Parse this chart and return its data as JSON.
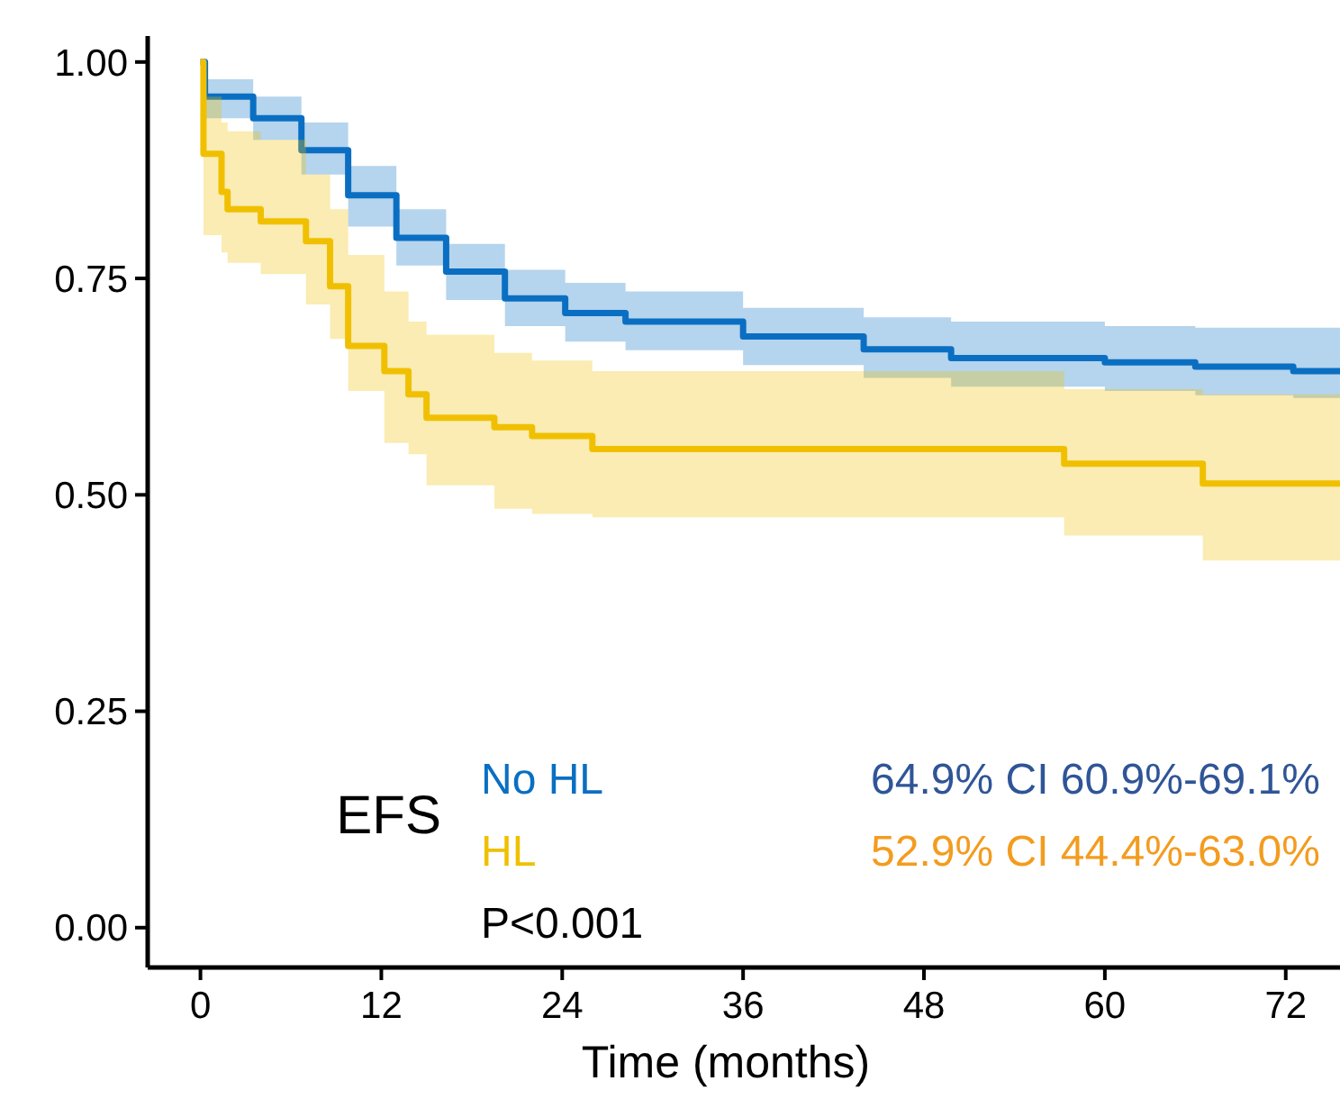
{
  "chart_data": {
    "type": "step",
    "xlabel": "Time (months)",
    "xlim": [
      -3.5,
      75.6
    ],
    "xticks": [
      0,
      12,
      24,
      36,
      48,
      60,
      72
    ],
    "ylim": [
      -0.046,
      1.03
    ],
    "yticks": [
      {
        "value": 0,
        "label": "0.00"
      },
      {
        "value": 0.25,
        "label": "0.25"
      },
      {
        "value": 0.5,
        "label": "0.50"
      },
      {
        "value": 0.75,
        "label": "0.75"
      },
      {
        "value": 1,
        "label": "1.00"
      }
    ],
    "legend": "bottom",
    "legend_title": "EFS",
    "series": [
      {
        "name": "No HL",
        "color": "#0a6fc2",
        "x": [
          0,
          0.3,
          3.5,
          6.7,
          9.8,
          13,
          16.3,
          20.2,
          24.2,
          28.2,
          36,
          44,
          49.8,
          60,
          66,
          72.5,
          75.6
        ],
        "values": [
          1.0,
          0.96,
          0.935,
          0.898,
          0.846,
          0.797,
          0.758,
          0.727,
          0.71,
          0.7,
          0.683,
          0.668,
          0.658,
          0.653,
          0.648,
          0.643,
          0.643
        ],
        "upper": [
          1.0,
          0.98,
          0.96,
          0.93,
          0.88,
          0.83,
          0.79,
          0.76,
          0.745,
          0.735,
          0.716,
          0.705,
          0.7,
          0.695,
          0.693,
          0.693,
          0.693
        ],
        "lower": [
          1.0,
          0.935,
          0.91,
          0.87,
          0.81,
          0.765,
          0.725,
          0.695,
          0.677,
          0.667,
          0.65,
          0.635,
          0.625,
          0.62,
          0.615,
          0.612,
          0.612
        ]
      },
      {
        "name": "HL",
        "color": "#f0c000",
        "x": [
          0,
          0.2,
          1.4,
          1.8,
          4,
          7,
          8.6,
          9.8,
          12.2,
          13.8,
          15,
          19.5,
          22,
          26,
          57.3,
          66.5,
          75.6
        ],
        "values": [
          1.0,
          0.894,
          0.85,
          0.83,
          0.816,
          0.793,
          0.741,
          0.672,
          0.643,
          0.616,
          0.589,
          0.578,
          0.568,
          0.553,
          0.536,
          0.513,
          0.513
        ],
        "upper": [
          1.0,
          0.96,
          0.93,
          0.92,
          0.91,
          0.87,
          0.83,
          0.777,
          0.735,
          0.7,
          0.685,
          0.664,
          0.655,
          0.643,
          0.622,
          0.616,
          0.612
        ],
        "lower": [
          1.0,
          0.8,
          0.78,
          0.768,
          0.755,
          0.72,
          0.68,
          0.62,
          0.56,
          0.547,
          0.511,
          0.484,
          0.478,
          0.474,
          0.453,
          0.424,
          0.424
        ]
      }
    ],
    "annotations": [
      "64.9% CI 60.9%-69.1%",
      "52.9% CI 44.4%-63.0%",
      "P<0.001"
    ]
  }
}
